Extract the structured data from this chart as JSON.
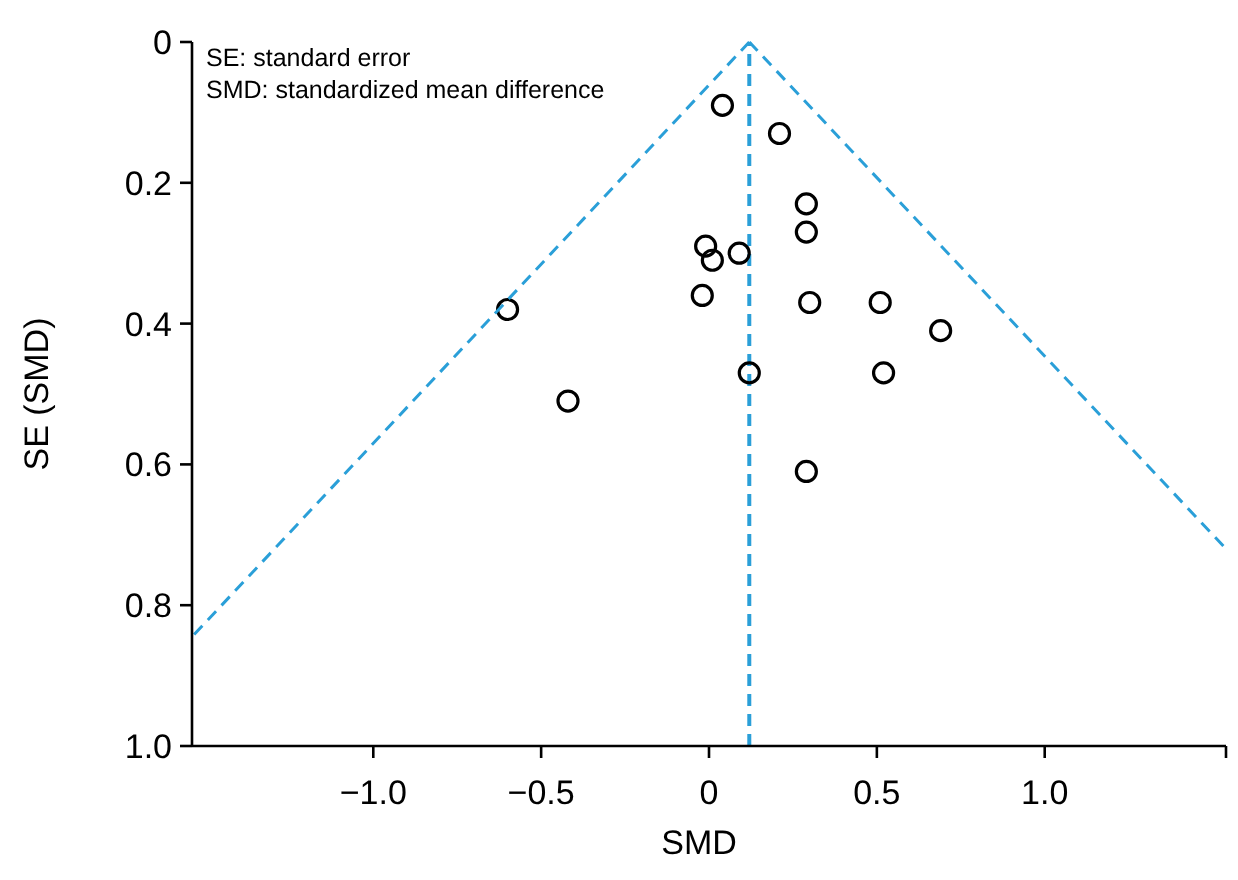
{
  "chart_data": {
    "type": "scatter",
    "xlabel": "SMD",
    "ylabel": "SE (SMD)",
    "annotations": [
      "SE: standard error",
      "SMD: standardized mean difference"
    ],
    "xlim": [
      -1.54,
      1.54
    ],
    "ylim": [
      1.0,
      0
    ],
    "xticks": [
      {
        "value": -1.0,
        "label": "−1.0"
      },
      {
        "value": -0.5,
        "label": "−0.5"
      },
      0,
      0.5,
      {
        "value": 1.0,
        "label": "1.0"
      },
      {
        "value": 1.54,
        "label": null
      }
    ],
    "yticks": [
      0,
      0.2,
      0.4,
      0.6,
      0.8,
      {
        "value": 1.0,
        "label": "1.0"
      }
    ],
    "ref_lines": [
      {
        "axis": "x",
        "value": 0.12,
        "color": "#2a9fd8",
        "line_style": "dashed"
      }
    ],
    "series": [
      {
        "color": "#000000",
        "marker": "circle",
        "x": [
          0.04,
          0.21,
          0.29,
          0.29,
          -0.01,
          0.01,
          0.09,
          -0.02,
          0.3,
          0.51,
          0.69,
          0.12,
          0.52,
          -0.6,
          -0.42,
          0.29
        ],
        "values": [
          0.09,
          0.13,
          0.23,
          0.27,
          0.29,
          0.31,
          0.3,
          0.36,
          0.37,
          0.37,
          0.41,
          0.47,
          0.47,
          0.38,
          0.51,
          0.61
        ]
      },
      {
        "type": "line",
        "color": "#2a9fd8",
        "line_style": "dashed",
        "x": [
          0.12,
          -1.54
        ],
        "values": [
          0,
          0.845
        ]
      },
      {
        "type": "line",
        "color": "#2a9fd8",
        "line_style": "dashed",
        "x": [
          0.12,
          1.54
        ],
        "values": [
          0,
          0.72
        ]
      }
    ]
  }
}
